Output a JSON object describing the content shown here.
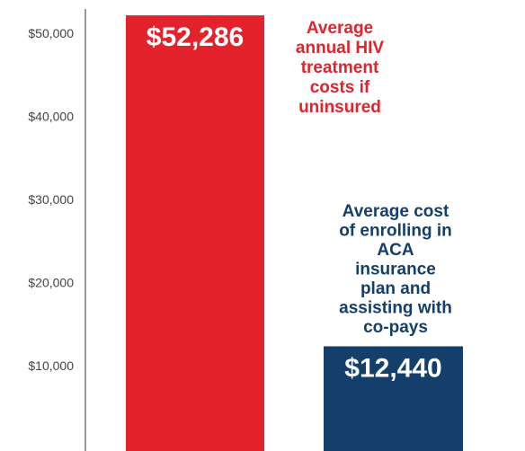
{
  "chart_data": {
    "type": "bar",
    "categories": [
      null,
      null
    ],
    "values": [
      52286,
      12440
    ],
    "value_labels": [
      "$52,286",
      "$12,440"
    ],
    "colors": [
      "#e3222b",
      "#143f6a"
    ],
    "ylim": [
      0,
      53000
    ],
    "yticks": [
      {
        "value": 10000,
        "label": "$10,000"
      },
      {
        "value": 20000,
        "label": "$20,000"
      },
      {
        "value": 30000,
        "label": "$30,000"
      },
      {
        "value": 40000,
        "label": "$40,000"
      },
      {
        "value": 50000,
        "label": "$50,000"
      }
    ],
    "annotations": [
      {
        "lines": [
          "Average",
          "annual HIV",
          "treatment",
          "costs if",
          "uninsured"
        ],
        "color": "#e3222b"
      },
      {
        "lines": [
          "Average cost",
          "of enrolling in",
          "ACA",
          "insurance",
          "plan and",
          "assisting with",
          "co-pays"
        ],
        "color": "#143f6a"
      }
    ]
  }
}
